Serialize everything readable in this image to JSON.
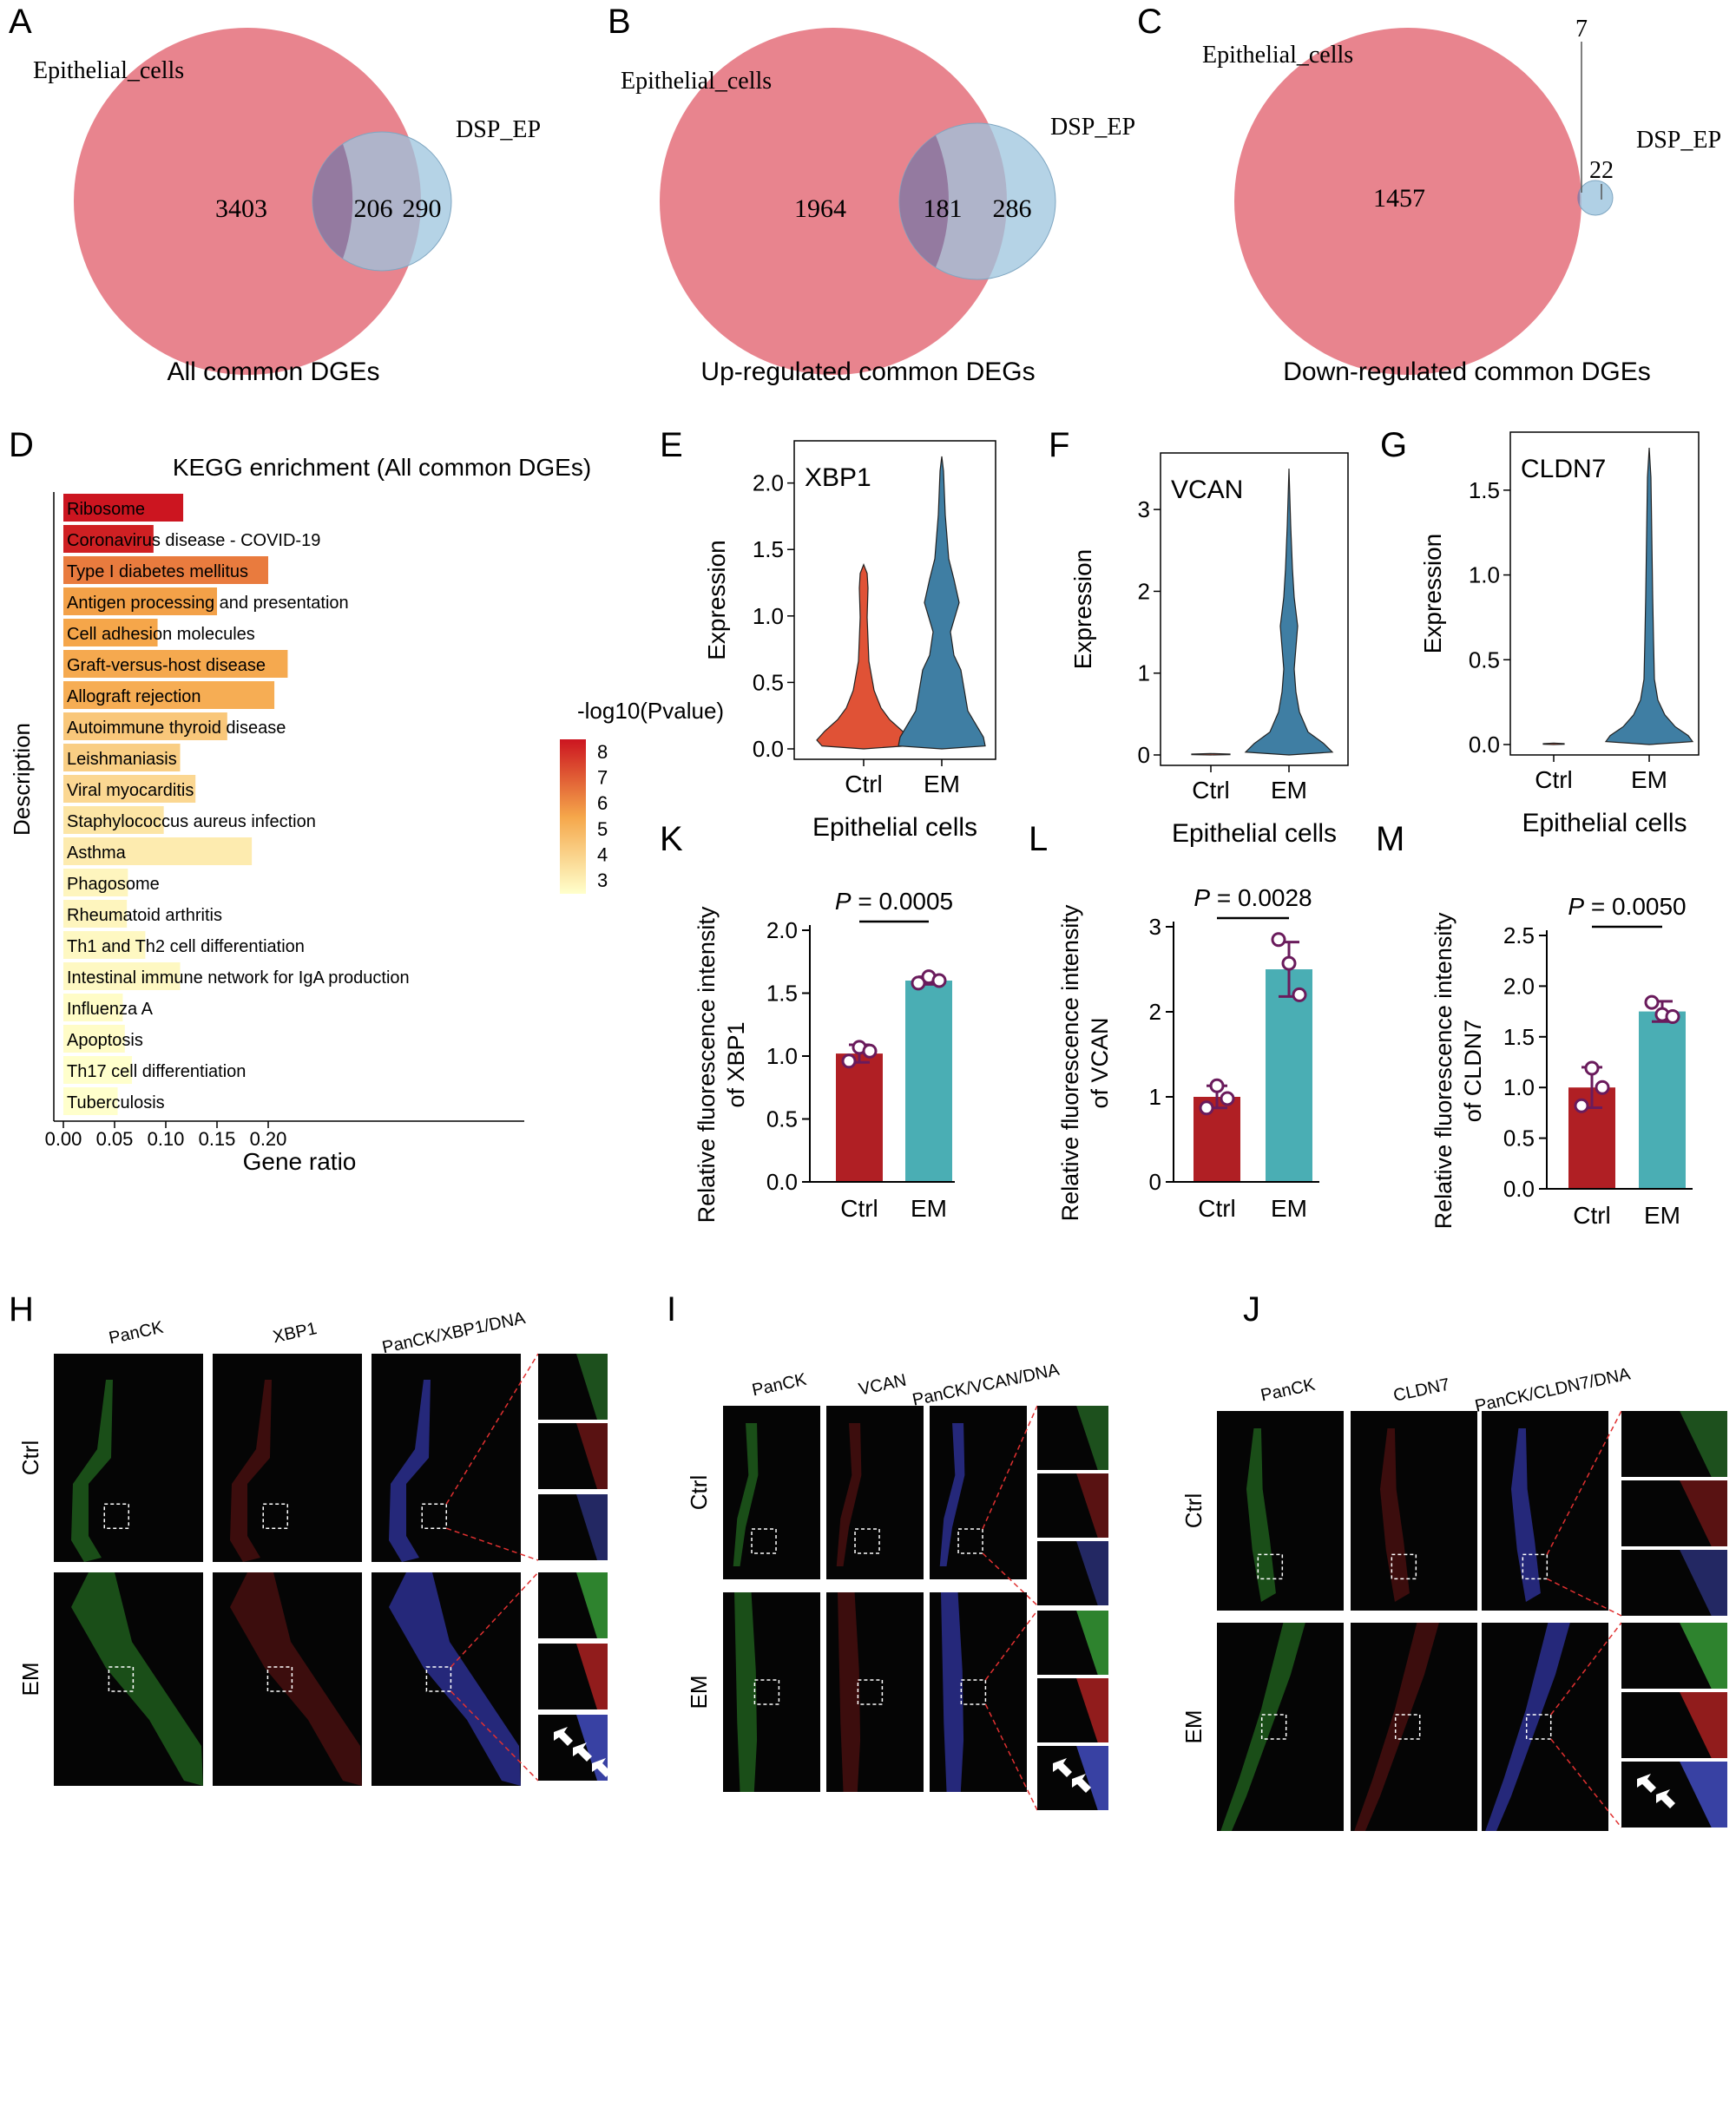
{
  "panel_letters": {
    "A": "A",
    "B": "B",
    "C": "C",
    "D": "D",
    "E": "E",
    "F": "F",
    "G": "G",
    "H": "H",
    "I": "I",
    "J": "J",
    "K": "K",
    "L": "L",
    "M": "M"
  },
  "venns": [
    {
      "id": "A",
      "left_name": "Epithelial_cells",
      "right_name": "DSP_EP",
      "left_only": "3403",
      "overlap": "206",
      "right_only": "290",
      "caption": "All common DGEs"
    },
    {
      "id": "B",
      "left_name": "Epithelial_cells",
      "right_name": "DSP_EP",
      "left_only": "1964",
      "overlap": "181",
      "right_only": "286",
      "caption": "Up-regulated common DEGs"
    },
    {
      "id": "C",
      "left_name": "Epithelial_cells",
      "right_name": "DSP_EP",
      "left_only": "1457",
      "overlap": "7",
      "right_only": "22",
      "caption": "Down-regulated common DGEs"
    }
  ],
  "kegg": {
    "title": "KEGG enrichment (All common DGEs)",
    "ylabel": "Description",
    "xlabel": "Gene ratio",
    "legend_title": "-log10(Pvalue)",
    "legend_ticks": [
      "8",
      "7",
      "6",
      "5",
      "4",
      "3"
    ],
    "xticks": [
      "0.00",
      "0.05",
      "0.10",
      "0.15",
      "0.20"
    ]
  },
  "violins": [
    {
      "id": "E",
      "gene": "XBP1",
      "ylabel": "Expression",
      "xlabel": "Epithelial cells",
      "groups": [
        "Ctrl",
        "EM"
      ],
      "yticks": [
        "0.0",
        "0.5",
        "1.0",
        "1.5",
        "2.0"
      ]
    },
    {
      "id": "F",
      "gene": "VCAN",
      "ylabel": "Expression",
      "xlabel": "Epithelial cells",
      "groups": [
        "Ctrl",
        "EM"
      ],
      "yticks": [
        "0",
        "1",
        "2",
        "3"
      ]
    },
    {
      "id": "G",
      "gene": "CLDN7",
      "ylabel": "Expression",
      "xlabel": "Epithelial cells",
      "groups": [
        "Ctrl",
        "EM"
      ],
      "yticks": [
        "0.0",
        "0.5",
        "1.0",
        "1.5"
      ]
    }
  ],
  "bars": [
    {
      "id": "K",
      "ylabel1": "Relative fluorescence intensity",
      "ylabel2": "of XBP1",
      "pvalue": "= 0.0005",
      "groups": [
        "Ctrl",
        "EM"
      ],
      "yticks": [
        "0.0",
        "0.5",
        "1.0",
        "1.5",
        "2.0"
      ]
    },
    {
      "id": "L",
      "ylabel1": "Relative fluorescence intensity",
      "ylabel2": "of VCAN",
      "pvalue": "= 0.0028",
      "groups": [
        "Ctrl",
        "EM"
      ],
      "yticks": [
        "0",
        "1",
        "2",
        "3"
      ]
    },
    {
      "id": "M",
      "ylabel1": "Relative fluorescence intensity",
      "ylabel2": "of CLDN7",
      "pvalue": "= 0.0050",
      "groups": [
        "Ctrl",
        "EM"
      ],
      "yticks": [
        "0.0",
        "0.5",
        "1.0",
        "1.5",
        "2.0",
        "2.5"
      ]
    }
  ],
  "pvalue_symbol": "P",
  "micro": [
    {
      "id": "H",
      "channels": [
        "PanCK",
        "XBP1",
        "PanCK/XBP1/DNA"
      ]
    },
    {
      "id": "I",
      "channels": [
        "PanCK",
        "VCAN",
        "PanCK/VCAN/DNA"
      ]
    },
    {
      "id": "J",
      "channels": [
        "PanCK",
        "CLDN7",
        "PanCK/CLDN7/DNA"
      ]
    }
  ],
  "row_labels": [
    "Ctrl",
    "EM"
  ],
  "colors": {
    "venn_left": "#e8848e",
    "venn_right": "#9cc4de",
    "violin_ctrl": "#e05236",
    "violin_em": "#3f7ea3",
    "bar_ctrl": "#b01f24",
    "bar_em": "#4aaeb4",
    "dot": "#6a1b5c",
    "grad_high": "#cc1520",
    "grad_mid": "#f5a64a",
    "grad_low": "#ffffcc"
  },
  "chart_data": [
    {
      "type": "bar",
      "title": "KEGG enrichment (All common DGEs)",
      "xlabel": "Gene ratio",
      "ylabel": "Description",
      "xlim": [
        0,
        0.22
      ],
      "legend": "-log10(Pvalue)",
      "categories": [
        "Ribosome",
        "Coronavirus disease - COVID-19",
        "Type I diabetes mellitus",
        "Antigen processing and presentation",
        "Cell adhesion molecules",
        "Graft-versus-host disease",
        "Allograft rejection",
        "Autoimmune thyroid disease",
        "Leishmaniasis",
        "Viral myocarditis",
        "Staphylococcus aureus infection",
        "Asthma",
        "Phagosome",
        "Rheumatoid arthritis",
        "Th1 and Th2 cell differentiation",
        "Intestinal immune network for IgA production",
        "Influenza A",
        "Apoptosis",
        "Th17 cell differentiation",
        "Tuberculosis"
      ],
      "values": [
        0.117,
        0.088,
        0.2,
        0.15,
        0.092,
        0.219,
        0.206,
        0.16,
        0.114,
        0.129,
        0.098,
        0.184,
        0.063,
        0.062,
        0.08,
        0.114,
        0.058,
        0.06,
        0.067,
        0.053
      ],
      "neglog10p": [
        8.2,
        8.0,
        6.3,
        5.6,
        5.5,
        5.4,
        5.3,
        4.5,
        4.3,
        4.0,
        3.6,
        3.4,
        3.1,
        3.1,
        3.0,
        3.0,
        2.9,
        2.9,
        2.8,
        2.8
      ]
    },
    {
      "type": "bar",
      "title": "",
      "ylabel": "Relative fluorescence intensity of XBP1",
      "categories": [
        "Ctrl",
        "EM"
      ],
      "values": [
        1.02,
        1.6
      ],
      "errors": [
        0.07,
        0.03
      ],
      "points": [
        [
          0.96,
          1.07,
          1.04
        ],
        [
          1.58,
          1.63,
          1.6
        ]
      ],
      "ylim": [
        0,
        2.0
      ]
    },
    {
      "type": "bar",
      "title": "",
      "ylabel": "Relative fluorescence intensity of VCAN",
      "categories": [
        "Ctrl",
        "EM"
      ],
      "values": [
        1.0,
        2.5
      ],
      "errors": [
        0.13,
        0.32
      ],
      "points": [
        [
          0.87,
          1.13,
          0.98
        ],
        [
          2.85,
          2.57,
          2.2
        ]
      ],
      "ylim": [
        0,
        3
      ]
    },
    {
      "type": "bar",
      "title": "",
      "ylabel": "Relative fluorescence intensity of CLDN7",
      "categories": [
        "Ctrl",
        "EM"
      ],
      "values": [
        1.0,
        1.75
      ],
      "errors": [
        0.2,
        0.1
      ],
      "points": [
        [
          0.82,
          1.19,
          1.0
        ],
        [
          1.84,
          1.72,
          1.7
        ]
      ],
      "ylim": [
        0,
        2.5
      ]
    }
  ]
}
